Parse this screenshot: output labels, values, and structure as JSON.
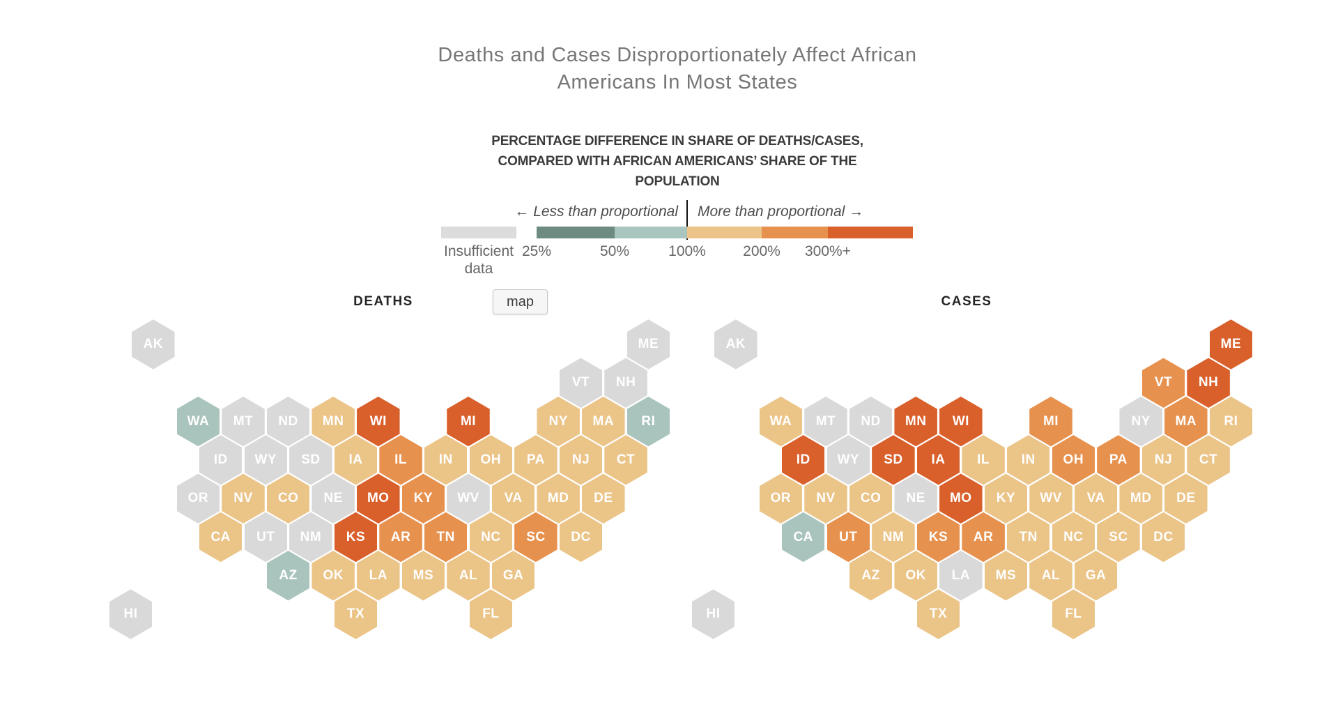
{
  "title": {
    "lines": [
      "Deaths and Cases Disproportionately Affect African",
      "Americans In Most States"
    ]
  },
  "legend": {
    "heading_lines": [
      "PERCENTAGE DIFFERENCE IN SHARE OF DEATHS/CASES,",
      "COMPARED WITH AFRICAN AMERICANS’ SHARE OF THE",
      "POPULATION"
    ],
    "left_label": "← Less than proportional",
    "right_label": "More than proportional →",
    "scale": [
      {
        "label": "Insufficient data",
        "color": "#dcdcdc"
      },
      {
        "label": "25%",
        "color": "#6d8b80"
      },
      {
        "label": "50%",
        "color": "#a9c5bf"
      },
      {
        "label": "100%",
        "color": "#ecc489"
      },
      {
        "label": "200%",
        "color": "#e7914f"
      },
      {
        "label": "300%+",
        "color": "#d95f2b"
      }
    ]
  },
  "toolbar": {
    "map_button_label": "map"
  },
  "bucket_colors": {
    "insufficient": "#d9d9d9",
    "50%": "#a9c4bd",
    "100%": "#ebc488",
    "200%": "#e7914f",
    "300%+": "#d95f2b"
  },
  "hex_grid": {
    "AK": [
      1,
      0
    ],
    "ME": [
      23,
      0
    ],
    "VT": [
      20,
      1
    ],
    "NH": [
      22,
      1
    ],
    "WA": [
      3,
      2
    ],
    "MT": [
      5,
      2
    ],
    "ND": [
      7,
      2
    ],
    "MN": [
      9,
      2
    ],
    "WI": [
      11,
      2
    ],
    "MI": [
      15,
      2
    ],
    "NY": [
      19,
      2
    ],
    "MA": [
      21,
      2
    ],
    "RI": [
      23,
      2
    ],
    "ID": [
      4,
      3
    ],
    "WY": [
      6,
      3
    ],
    "SD": [
      8,
      3
    ],
    "IA": [
      10,
      3
    ],
    "IL": [
      12,
      3
    ],
    "IN": [
      14,
      3
    ],
    "OH": [
      16,
      3
    ],
    "PA": [
      18,
      3
    ],
    "NJ": [
      20,
      3
    ],
    "CT": [
      22,
      3
    ],
    "OR": [
      3,
      4
    ],
    "NV": [
      5,
      4
    ],
    "CO": [
      7,
      4
    ],
    "NE": [
      9,
      4
    ],
    "MO": [
      11,
      4
    ],
    "KY": [
      13,
      4
    ],
    "WV": [
      15,
      4
    ],
    "VA": [
      17,
      4
    ],
    "MD": [
      19,
      4
    ],
    "DE": [
      21,
      4
    ],
    "CA": [
      4,
      5
    ],
    "UT": [
      6,
      5
    ],
    "NM": [
      8,
      5
    ],
    "KS": [
      10,
      5
    ],
    "AR": [
      12,
      5
    ],
    "TN": [
      14,
      5
    ],
    "NC": [
      16,
      5
    ],
    "SC": [
      18,
      5
    ],
    "DC": [
      20,
      5
    ],
    "AZ": [
      7,
      6
    ],
    "OK": [
      9,
      6
    ],
    "LA": [
      11,
      6
    ],
    "MS": [
      13,
      6
    ],
    "AL": [
      15,
      6
    ],
    "GA": [
      17,
      6
    ],
    "TX": [
      10,
      7
    ],
    "FL": [
      16,
      7
    ],
    "HI": [
      0,
      7
    ]
  },
  "chart_data": [
    {
      "id": "deaths",
      "type": "heatmap",
      "subtype": "hex-tile-cartogram",
      "title": "DEATHS",
      "legend_title": "PERCENTAGE DIFFERENCE IN SHARE OF DEATHS/CASES, COMPARED WITH AFRICAN AMERICANS’ SHARE OF THE POPULATION",
      "scale_buckets": [
        "insufficient",
        "25%",
        "50%",
        "100%",
        "200%",
        "300%+"
      ],
      "states": {
        "AK": "insufficient",
        "ME": "insufficient",
        "VT": "insufficient",
        "NH": "insufficient",
        "WA": "50%",
        "MT": "insufficient",
        "ND": "insufficient",
        "MN": "100%",
        "WI": "300%+",
        "MI": "300%+",
        "NY": "100%",
        "MA": "100%",
        "RI": "50%",
        "ID": "insufficient",
        "WY": "insufficient",
        "SD": "insufficient",
        "IA": "100%",
        "IL": "200%",
        "IN": "100%",
        "OH": "100%",
        "PA": "100%",
        "NJ": "100%",
        "CT": "100%",
        "OR": "insufficient",
        "NV": "100%",
        "CO": "100%",
        "NE": "insufficient",
        "MO": "300%+",
        "KY": "200%",
        "WV": "insufficient",
        "VA": "100%",
        "MD": "100%",
        "DE": "100%",
        "CA": "100%",
        "UT": "insufficient",
        "NM": "insufficient",
        "KS": "300%+",
        "AR": "200%",
        "TN": "200%",
        "NC": "100%",
        "SC": "200%",
        "DC": "100%",
        "AZ": "50%",
        "OK": "100%",
        "LA": "100%",
        "MS": "100%",
        "AL": "100%",
        "GA": "100%",
        "TX": "100%",
        "FL": "100%",
        "HI": "insufficient"
      }
    },
    {
      "id": "cases",
      "type": "heatmap",
      "subtype": "hex-tile-cartogram",
      "title": "CASES",
      "legend_title": "PERCENTAGE DIFFERENCE IN SHARE OF DEATHS/CASES, COMPARED WITH AFRICAN AMERICANS’ SHARE OF THE POPULATION",
      "scale_buckets": [
        "insufficient",
        "25%",
        "50%",
        "100%",
        "200%",
        "300%+"
      ],
      "states": {
        "AK": "insufficient",
        "ME": "300%+",
        "VT": "200%",
        "NH": "300%+",
        "WA": "100%",
        "MT": "insufficient",
        "ND": "insufficient",
        "MN": "300%+",
        "WI": "300%+",
        "MI": "200%",
        "NY": "insufficient",
        "MA": "200%",
        "RI": "100%",
        "ID": "300%+",
        "WY": "insufficient",
        "SD": "300%+",
        "IA": "300%+",
        "IL": "100%",
        "IN": "100%",
        "OH": "200%",
        "PA": "200%",
        "NJ": "100%",
        "CT": "100%",
        "OR": "100%",
        "NV": "100%",
        "CO": "100%",
        "NE": "insufficient",
        "MO": "300%+",
        "KY": "100%",
        "WV": "100%",
        "VA": "100%",
        "MD": "100%",
        "DE": "100%",
        "CA": "50%",
        "UT": "200%",
        "NM": "100%",
        "KS": "200%",
        "AR": "200%",
        "TN": "100%",
        "NC": "100%",
        "SC": "100%",
        "DC": "100%",
        "AZ": "100%",
        "OK": "100%",
        "LA": "insufficient",
        "MS": "100%",
        "AL": "100%",
        "GA": "100%",
        "TX": "100%",
        "FL": "100%",
        "HI": "insufficient"
      }
    }
  ]
}
